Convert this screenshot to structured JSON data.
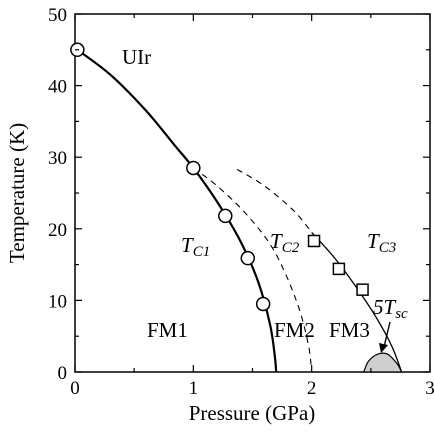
{
  "chart_data": {
    "type": "scatter",
    "xlabel": "Pressure (GPa)",
    "ylabel": "Temperature (K)",
    "xlim": [
      0,
      3
    ],
    "ylim": [
      0,
      50
    ],
    "x_ticks": [
      "0",
      "1",
      "2",
      "3"
    ],
    "y_ticks": [
      "0",
      "10",
      "20",
      "30",
      "40",
      "50"
    ],
    "series": [
      {
        "marker": "circle",
        "line": "solid",
        "points": [
          [
            0.02,
            45.0
          ],
          [
            1.0,
            28.5
          ],
          [
            1.27,
            21.8
          ],
          [
            1.46,
            15.9
          ],
          [
            1.59,
            9.5
          ]
        ],
        "curve": [
          [
            0.02,
            45.0
          ],
          [
            0.3,
            41.5
          ],
          [
            0.6,
            36.5
          ],
          [
            0.85,
            31.5
          ],
          [
            1.0,
            28.5
          ],
          [
            1.2,
            23.8
          ],
          [
            1.4,
            18.2
          ],
          [
            1.55,
            12.5
          ],
          [
            1.65,
            6.5
          ],
          [
            1.69,
            2.0
          ],
          [
            1.7,
            0.0
          ]
        ]
      },
      {
        "marker": "none",
        "line": "dashed",
        "curve": [
          [
            1.0,
            28.5
          ],
          [
            1.2,
            26.0
          ],
          [
            1.45,
            22.0
          ],
          [
            1.68,
            17.0
          ],
          [
            1.87,
            10.0
          ],
          [
            1.97,
            4.0
          ],
          [
            2.0,
            0.0
          ]
        ]
      },
      {
        "marker": "none",
        "line": "dashed",
        "curve": [
          [
            1.37,
            28.3
          ],
          [
            1.6,
            26.0
          ],
          [
            1.85,
            22.5
          ],
          [
            2.0,
            19.5
          ]
        ]
      },
      {
        "marker": "square",
        "line": "solid",
        "points": [
          [
            2.02,
            18.3
          ],
          [
            2.23,
            14.4
          ],
          [
            2.43,
            11.5
          ]
        ],
        "curve": [
          [
            2.0,
            19.5
          ],
          [
            2.2,
            15.8
          ],
          [
            2.4,
            11.3
          ],
          [
            2.55,
            7.5
          ],
          [
            2.68,
            3.5
          ],
          [
            2.76,
            0.0
          ]
        ]
      }
    ],
    "region": {
      "name": "superconducting dome",
      "fill": "#cfcfcf",
      "curve": [
        [
          2.44,
          0.0
        ],
        [
          2.48,
          1.5
        ],
        [
          2.56,
          2.5
        ],
        [
          2.64,
          2.5
        ],
        [
          2.72,
          1.2
        ],
        [
          2.76,
          0.0
        ]
      ]
    },
    "annotations": {
      "material": "UIr",
      "tc1": "T",
      "tc1_sub": "C1",
      "tc2": "T",
      "tc2_sub": "C2",
      "tc3": "T",
      "tc3_sub": "C3",
      "fm1": "FM1",
      "fm2": "FM2",
      "fm3": "FM3",
      "tsc": "5T",
      "tsc_sub": "sc"
    },
    "colors": {
      "line": "#000000",
      "marker_fill": "#ffffff",
      "dome": "#cfcfcf"
    }
  }
}
